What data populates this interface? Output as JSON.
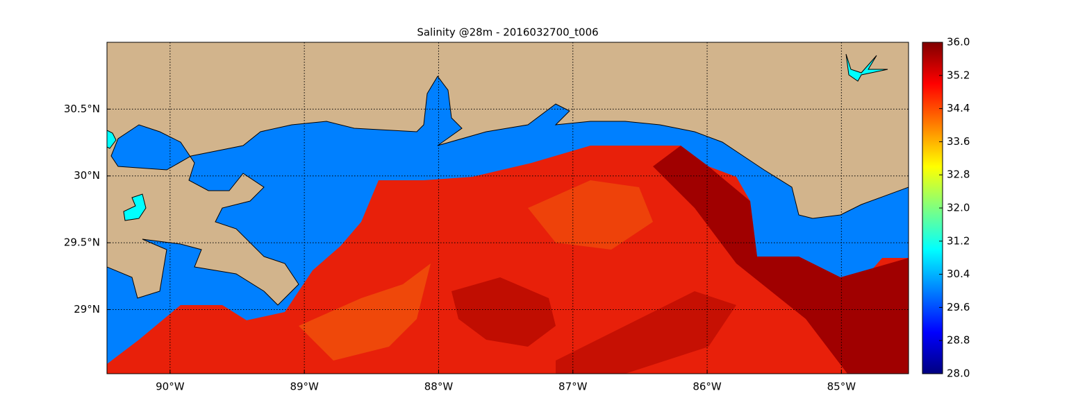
{
  "chart_data": {
    "type": "map",
    "title": "Salinity @28m - 2016032700_t006",
    "xlim": [
      -90.47,
      -84.5
    ],
    "ylim": [
      28.52,
      31.0
    ],
    "xticks": [
      {
        "value": -90,
        "label": "90°W"
      },
      {
        "value": -89,
        "label": "89°W"
      },
      {
        "value": -88,
        "label": "88°W"
      },
      {
        "value": -87,
        "label": "87°W"
      },
      {
        "value": -86,
        "label": "86°W"
      },
      {
        "value": -85,
        "label": "85°W"
      }
    ],
    "yticks": [
      {
        "value": 29,
        "label": "29°N"
      },
      {
        "value": 29.5,
        "label": "29.5°N"
      },
      {
        "value": 30,
        "label": "30°N"
      },
      {
        "value": 30.5,
        "label": "30.5°N"
      }
    ],
    "grid": true,
    "colormap": "jet",
    "clim": [
      28,
      36
    ],
    "cticks": [
      {
        "value": 28,
        "label": "28.0"
      },
      {
        "value": 28.8,
        "label": "28.8"
      },
      {
        "value": 29.6,
        "label": "29.6"
      },
      {
        "value": 30.4,
        "label": "30.4"
      },
      {
        "value": 31.2,
        "label": "31.2"
      },
      {
        "value": 32,
        "label": "32.0"
      },
      {
        "value": 32.8,
        "label": "32.8"
      },
      {
        "value": 33.6,
        "label": "33.6"
      },
      {
        "value": 34.4,
        "label": "34.4"
      },
      {
        "value": 35.2,
        "label": "35.2"
      },
      {
        "value": 36,
        "label": "36.0"
      }
    ]
  }
}
